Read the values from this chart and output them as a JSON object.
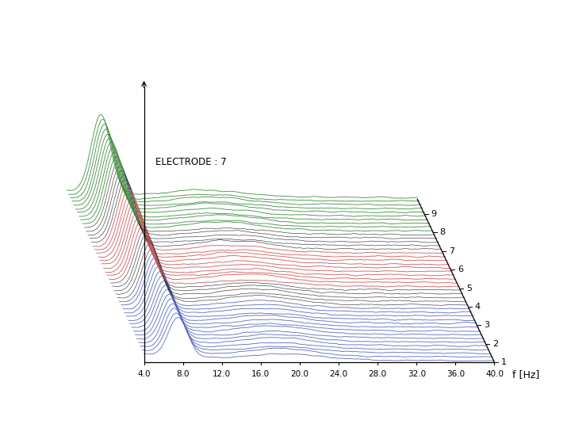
{
  "title": "ELECTRODE : 7",
  "xlabel": "f [Hz]",
  "x_min": 4.0,
  "x_max": 40.0,
  "x_ticks": [
    4.0,
    8.0,
    12.0,
    16.0,
    20.0,
    24.0,
    28.0,
    32.0,
    36.0,
    40.0
  ],
  "y_labels": [
    1,
    2,
    3,
    4,
    5,
    6,
    7,
    8,
    9
  ],
  "n_epochs": 9,
  "lines_per_epoch": 5,
  "background_color": "#ffffff",
  "green_color": "#3a8a3a",
  "red_color": "#cc5555",
  "blue_color": "#5566bb",
  "black_color": "#222222",
  "green_epochs": [
    8,
    9
  ],
  "red_epochs": [
    5,
    6
  ],
  "blue_epochs": [
    1,
    2,
    3
  ],
  "figsize": [
    7.2,
    5.4
  ],
  "dpi": 100
}
